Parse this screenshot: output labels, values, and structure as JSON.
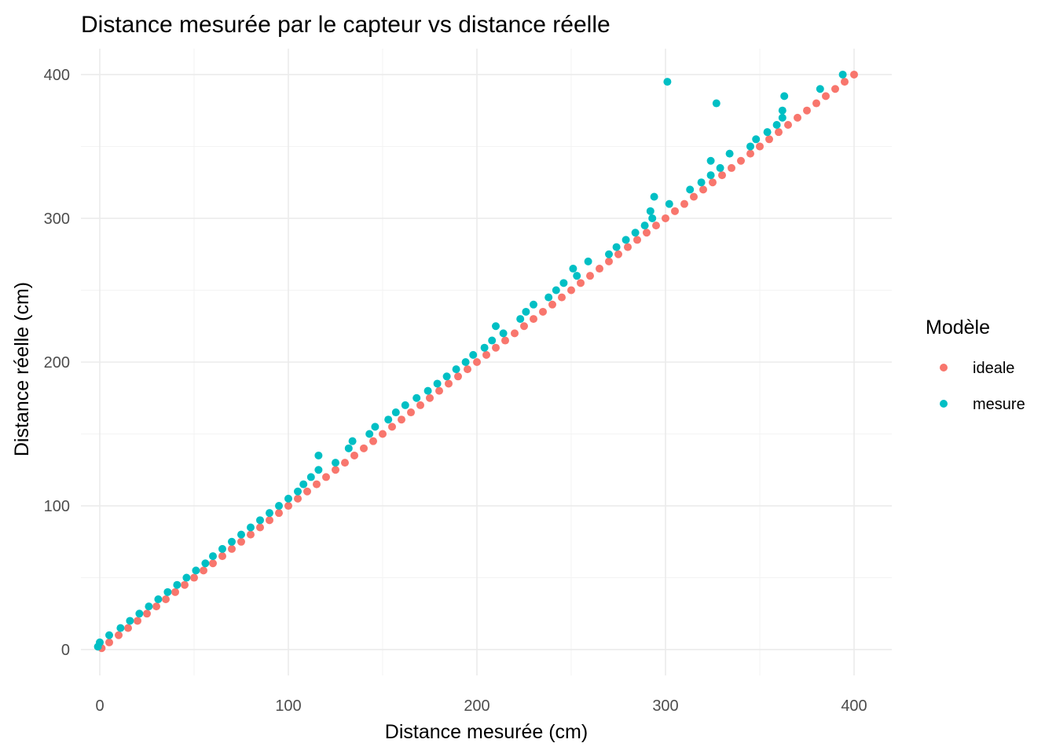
{
  "chart_data": {
    "type": "scatter",
    "title": "Distance mesurée par le capteur vs distance réelle",
    "xlabel": "Distance mesurée (cm)",
    "ylabel": "Distance réelle (cm)",
    "xlim": [
      -10,
      420
    ],
    "ylim": [
      -18,
      418
    ],
    "x_ticks": [
      0,
      100,
      200,
      300,
      400
    ],
    "y_ticks": [
      0,
      100,
      200,
      300,
      400
    ],
    "x_tick_labels": [
      "0",
      "100",
      "200",
      "300",
      "400"
    ],
    "y_tick_labels": [
      "0",
      "100",
      "200",
      "300",
      "400"
    ],
    "grid": true,
    "legend": {
      "title": "Modèle",
      "position": "right"
    },
    "series": [
      {
        "name": "ideale",
        "color": "#F8766D",
        "points": [
          [
            1,
            1
          ],
          [
            5,
            5
          ],
          [
            10,
            10
          ],
          [
            15,
            15
          ],
          [
            20,
            20
          ],
          [
            25,
            25
          ],
          [
            30,
            30
          ],
          [
            35,
            35
          ],
          [
            40,
            40
          ],
          [
            45,
            45
          ],
          [
            50,
            50
          ],
          [
            55,
            55
          ],
          [
            60,
            60
          ],
          [
            65,
            65
          ],
          [
            70,
            70
          ],
          [
            75,
            75
          ],
          [
            80,
            80
          ],
          [
            85,
            85
          ],
          [
            90,
            90
          ],
          [
            95,
            95
          ],
          [
            100,
            100
          ],
          [
            105,
            105
          ],
          [
            110,
            110
          ],
          [
            115,
            115
          ],
          [
            120,
            120
          ],
          [
            125,
            125
          ],
          [
            130,
            130
          ],
          [
            135,
            135
          ],
          [
            140,
            140
          ],
          [
            145,
            145
          ],
          [
            150,
            150
          ],
          [
            155,
            155
          ],
          [
            160,
            160
          ],
          [
            165,
            165
          ],
          [
            170,
            170
          ],
          [
            175,
            175
          ],
          [
            180,
            180
          ],
          [
            185,
            185
          ],
          [
            190,
            190
          ],
          [
            195,
            195
          ],
          [
            200,
            200
          ],
          [
            205,
            205
          ],
          [
            210,
            210
          ],
          [
            215,
            215
          ],
          [
            220,
            220
          ],
          [
            225,
            225
          ],
          [
            230,
            230
          ],
          [
            235,
            235
          ],
          [
            240,
            240
          ],
          [
            245,
            245
          ],
          [
            250,
            250
          ],
          [
            255,
            255
          ],
          [
            260,
            260
          ],
          [
            265,
            265
          ],
          [
            270,
            270
          ],
          [
            275,
            275
          ],
          [
            280,
            280
          ],
          [
            285,
            285
          ],
          [
            290,
            290
          ],
          [
            295,
            295
          ],
          [
            300,
            300
          ],
          [
            305,
            305
          ],
          [
            310,
            310
          ],
          [
            315,
            315
          ],
          [
            320,
            320
          ],
          [
            325,
            325
          ],
          [
            330,
            330
          ],
          [
            335,
            335
          ],
          [
            340,
            340
          ],
          [
            345,
            345
          ],
          [
            350,
            350
          ],
          [
            355,
            355
          ],
          [
            360,
            360
          ],
          [
            365,
            365
          ],
          [
            370,
            370
          ],
          [
            375,
            375
          ],
          [
            380,
            380
          ],
          [
            385,
            385
          ],
          [
            390,
            390
          ],
          [
            395,
            395
          ],
          [
            400,
            400
          ]
        ]
      },
      {
        "name": "mesure",
        "color": "#00BFC4",
        "points": [
          [
            -1,
            2
          ],
          [
            0,
            5
          ],
          [
            5,
            10
          ],
          [
            11,
            15
          ],
          [
            16,
            20
          ],
          [
            21,
            25
          ],
          [
            26,
            30
          ],
          [
            31,
            35
          ],
          [
            36,
            40
          ],
          [
            41,
            45
          ],
          [
            46,
            50
          ],
          [
            51,
            55
          ],
          [
            56,
            60
          ],
          [
            60,
            65
          ],
          [
            65,
            70
          ],
          [
            70,
            75
          ],
          [
            75,
            80
          ],
          [
            80,
            85
          ],
          [
            85,
            90
          ],
          [
            90,
            95
          ],
          [
            95,
            100
          ],
          [
            100,
            105
          ],
          [
            105,
            110
          ],
          [
            108,
            115
          ],
          [
            112,
            120
          ],
          [
            116,
            125
          ],
          [
            116,
            135
          ],
          [
            125,
            130
          ],
          [
            132,
            140
          ],
          [
            134,
            145
          ],
          [
            143,
            150
          ],
          [
            146,
            155
          ],
          [
            153,
            160
          ],
          [
            157,
            165
          ],
          [
            162,
            170
          ],
          [
            168,
            175
          ],
          [
            174,
            180
          ],
          [
            179,
            185
          ],
          [
            184,
            190
          ],
          [
            189,
            195
          ],
          [
            194,
            200
          ],
          [
            198,
            205
          ],
          [
            204,
            210
          ],
          [
            208,
            215
          ],
          [
            210,
            225
          ],
          [
            214,
            220
          ],
          [
            223,
            230
          ],
          [
            226,
            235
          ],
          [
            230,
            240
          ],
          [
            238,
            245
          ],
          [
            242,
            250
          ],
          [
            246,
            255
          ],
          [
            251,
            265
          ],
          [
            253,
            260
          ],
          [
            259,
            270
          ],
          [
            270,
            275
          ],
          [
            274,
            280
          ],
          [
            279,
            285
          ],
          [
            284,
            290
          ],
          [
            289,
            295
          ],
          [
            293,
            300
          ],
          [
            292,
            305
          ],
          [
            294,
            315
          ],
          [
            302,
            310
          ],
          [
            301,
            395
          ],
          [
            313,
            320
          ],
          [
            319,
            325
          ],
          [
            324,
            330
          ],
          [
            324,
            340
          ],
          [
            327,
            380
          ],
          [
            329,
            335
          ],
          [
            334,
            345
          ],
          [
            345,
            350
          ],
          [
            348,
            355
          ],
          [
            354,
            360
          ],
          [
            359,
            365
          ],
          [
            362,
            370
          ],
          [
            362,
            375
          ],
          [
            363,
            385
          ],
          [
            382,
            390
          ],
          [
            394,
            400
          ]
        ]
      }
    ]
  }
}
